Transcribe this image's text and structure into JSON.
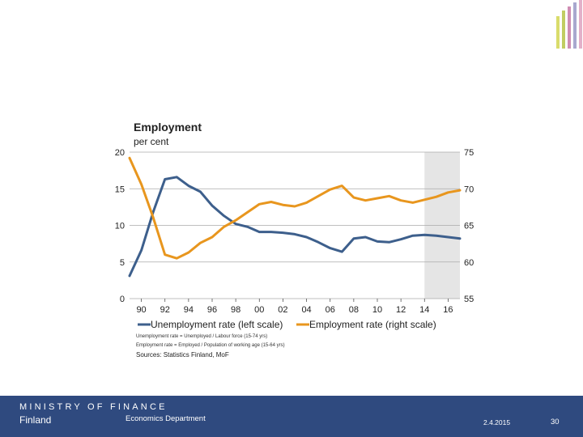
{
  "footer": {
    "ministry": "MINISTRY OF FINANCE",
    "country": "Finland",
    "department": "Economics Department",
    "date": "2.4.2015",
    "page": "30"
  },
  "chart_data": {
    "type": "line",
    "title": "Employment",
    "subtitle": "per cent",
    "x": [
      1989,
      1990,
      1991,
      1992,
      1993,
      1994,
      1995,
      1996,
      1997,
      1998,
      1999,
      2000,
      2001,
      2002,
      2003,
      2004,
      2005,
      2006,
      2007,
      2008,
      2009,
      2010,
      2011,
      2012,
      2013,
      2014,
      2015,
      2016,
      2017
    ],
    "xlim": [
      1989,
      2017
    ],
    "xtick_values": [
      1990,
      1992,
      1994,
      1996,
      1998,
      2000,
      2002,
      2004,
      2006,
      2008,
      2010,
      2012,
      2014,
      2016
    ],
    "xtick_labels": [
      "90",
      "92",
      "94",
      "96",
      "98",
      "00",
      "02",
      "04",
      "06",
      "08",
      "10",
      "12",
      "14",
      "16"
    ],
    "shaded_region": [
      2014,
      2017
    ],
    "y_left": {
      "range": [
        0,
        20
      ],
      "ticks": [
        0,
        5,
        10,
        15,
        20
      ]
    },
    "y_right": {
      "range": [
        55,
        75
      ],
      "ticks": [
        55,
        60,
        65,
        70,
        75
      ]
    },
    "series": [
      {
        "name": "Unemployment rate (left scale)",
        "axis": "left",
        "color": "#3d5f8c",
        "values": [
          3.1,
          6.6,
          11.8,
          16.3,
          16.6,
          15.4,
          14.6,
          12.7,
          11.3,
          10.2,
          9.8,
          9.1,
          9.1,
          9.0,
          8.8,
          8.4,
          7.7,
          6.9,
          6.4,
          8.2,
          8.4,
          7.8,
          7.7,
          8.1,
          8.6,
          8.7,
          8.6,
          8.4,
          8.2
        ]
      },
      {
        "name": "Employment rate (right scale)",
        "axis": "right",
        "color": "#e8961e",
        "values": [
          74.2,
          70.6,
          66.1,
          61.0,
          60.5,
          61.3,
          62.6,
          63.4,
          64.8,
          65.7,
          66.8,
          67.9,
          68.2,
          67.8,
          67.6,
          68.1,
          69.0,
          69.9,
          70.4,
          68.8,
          68.4,
          68.7,
          69.0,
          68.4,
          68.1,
          68.5,
          68.9,
          69.5,
          69.8
        ]
      }
    ],
    "notes": [
      "Unemployment rate = Unemployed / Labour force (15-74 yrs)",
      "Employment rate = Employed / Population of working age (15-64 yrs)"
    ],
    "source": "Sources: Statistics Finland, MoF"
  }
}
